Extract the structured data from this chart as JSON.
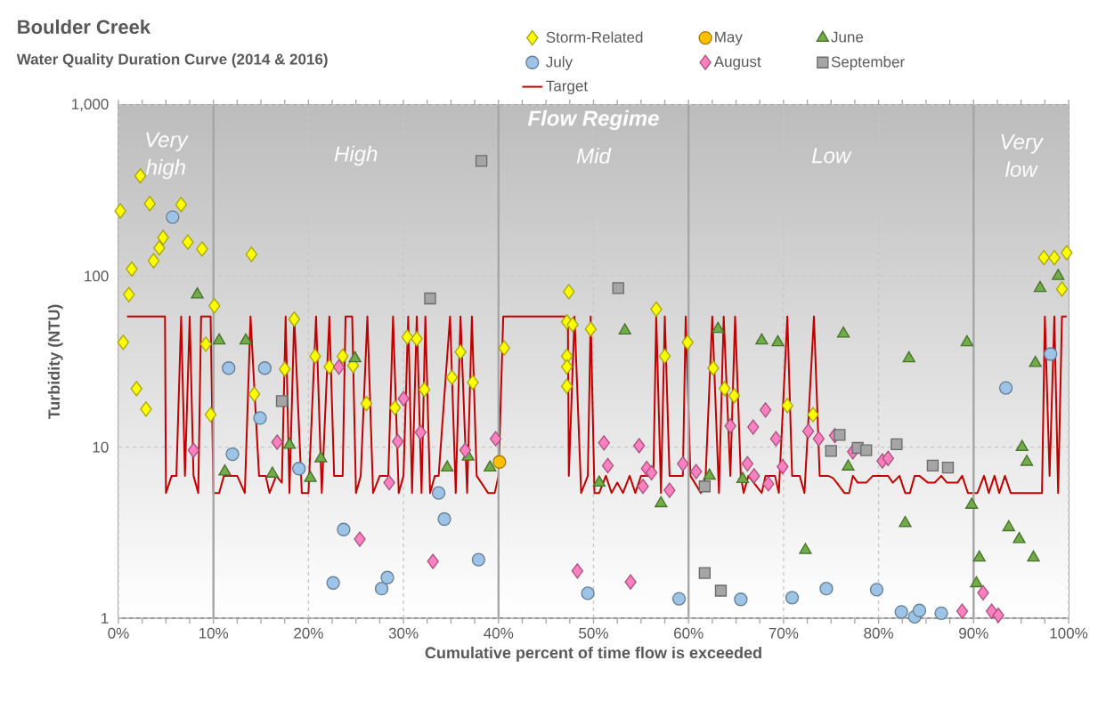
{
  "chart_data": {
    "type": "scatter",
    "title": "Boulder Creek",
    "subtitle": "Water Quality Duration Curve (2014 & 2016)",
    "xlabel": "Cumulative percent of time flow is exceeded",
    "ylabel": "Turbidity (NTU)",
    "annotations": [
      "Flow Regime"
    ],
    "xlim": [
      0,
      100
    ],
    "ylim": [
      1,
      1000
    ],
    "log": "y",
    "grid": true,
    "legend": "top",
    "xticks": [
      {
        "value": 0,
        "label": "0%"
      },
      {
        "value": 10,
        "label": "10%"
      },
      {
        "value": 20,
        "label": "20%"
      },
      {
        "value": 30,
        "label": "30%"
      },
      {
        "value": 40,
        "label": "40%"
      },
      {
        "value": 50,
        "label": "50%"
      },
      {
        "value": 60,
        "label": "60%"
      },
      {
        "value": 70,
        "label": "70%"
      },
      {
        "value": 80,
        "label": "80%"
      },
      {
        "value": 90,
        "label": "90%"
      },
      {
        "value": 100,
        "label": "100%"
      }
    ],
    "yticks": [
      1,
      10,
      100,
      {
        "value": 1000,
        "label": "1,000"
      }
    ],
    "bands": [
      {
        "axis": "x",
        "from": 0,
        "to": 10,
        "label": "Very high"
      },
      {
        "axis": "x",
        "from": 10,
        "to": 40,
        "label": "High"
      },
      {
        "axis": "x",
        "from": 40,
        "to": 60,
        "label": "Mid"
      },
      {
        "axis": "x",
        "from": 60,
        "to": 90,
        "label": "Low"
      },
      {
        "axis": "x",
        "from": 90,
        "to": 100,
        "label": "Very low"
      }
    ],
    "series": [
      {
        "name": "Storm-Related",
        "color": "#ffff00",
        "marker": "diamond",
        "x": [
          0.2,
          0.5,
          1.1,
          1.4,
          1.9,
          2.3,
          2.9,
          3.3,
          3.7,
          4.3,
          4.7,
          6.6,
          7.3,
          8.8,
          9.2,
          9.7,
          10.1,
          14.0,
          14.3,
          17.5,
          18.5,
          20.7,
          22.2,
          23.6,
          24.7,
          26.1,
          29.1,
          30.4,
          31.4,
          32.2,
          35.1,
          36.0,
          37.3,
          40.6,
          47.4,
          47.2,
          47.8,
          47.2,
          47.2,
          47.2,
          49.7,
          56.6,
          57.5,
          59.9,
          62.6,
          63.8,
          64.8,
          70.4,
          73.1,
          97.4,
          98.5,
          99.8,
          99.3
        ],
        "values": [
          240,
          41,
          78,
          110,
          22,
          385,
          16.7,
          265,
          123,
          146,
          168,
          262,
          158,
          144,
          40,
          15.5,
          67,
          134,
          20.4,
          28.6,
          56,
          34,
          29.5,
          34,
          30,
          18,
          17,
          44,
          43,
          21.7,
          25.6,
          36,
          23.9,
          38,
          81,
          54,
          52,
          34,
          29.5,
          22.7,
          49,
          64,
          34,
          41,
          29,
          22,
          20,
          17.5,
          15.5,
          128,
          128,
          137,
          84
        ]
      },
      {
        "name": "May",
        "color": "#ffc000",
        "marker": "circle",
        "x": [
          40.1
        ],
        "values": [
          8.2
        ]
      },
      {
        "name": "June",
        "color": "#70ad47",
        "marker": "triangle",
        "x": [
          8.3,
          10.6,
          13.4,
          11.2,
          16.2,
          18.0,
          20.2,
          21.3,
          24.9,
          34.6,
          36.8,
          39.1,
          50.6,
          53.3,
          57.1,
          62.2,
          63.1,
          65.7,
          67.7,
          69.4,
          72.3,
          76.3,
          76.8,
          82.8,
          83.2,
          89.3,
          89.8,
          90.3,
          90.6,
          93.7,
          94.8,
          95.1,
          95.6,
          96.3,
          96.5,
          97.0,
          98.9
        ],
        "values": [
          78,
          42,
          42,
          7.2,
          7.0,
          10.3,
          6.6,
          8.6,
          33,
          7.6,
          8.8,
          7.6,
          6.2,
          48,
          4.7,
          6.8,
          49,
          6.5,
          42,
          41,
          2.5,
          46,
          7.7,
          3.6,
          33,
          41,
          4.6,
          1.6,
          2.26,
          3.4,
          2.9,
          10,
          8.2,
          2.26,
          31,
          85,
          100
        ]
      },
      {
        "name": "July",
        "color": "#9dc3e6",
        "marker": "circle",
        "x": [
          5.7,
          11.6,
          12.0,
          15.4,
          14.9,
          19.0,
          22.6,
          23.7,
          27.7,
          28.3,
          33.7,
          34.3,
          37.9,
          49.4,
          59.0,
          65.5,
          70.9,
          74.5,
          79.8,
          82.4,
          83.8,
          84.3,
          86.6,
          93.4,
          98.1
        ],
        "values": [
          221,
          29,
          9.1,
          29,
          14.8,
          7.5,
          1.61,
          3.3,
          1.49,
          1.73,
          5.4,
          3.8,
          2.2,
          1.4,
          1.3,
          1.29,
          1.32,
          1.49,
          1.47,
          1.09,
          1.02,
          1.11,
          1.07,
          22.2,
          35
        ]
      },
      {
        "name": "August",
        "color": "#ff80c0",
        "marker": "diamond",
        "x": [
          7.9,
          16.7,
          23.2,
          25.4,
          28.5,
          29.4,
          30.0,
          31.8,
          33.1,
          36.5,
          39.7,
          48.3,
          51.1,
          51.5,
          53.9,
          54.8,
          55.6,
          56.1,
          55.2,
          58.0,
          59.4,
          60.8,
          64.4,
          66.2,
          66.8,
          66.9,
          68.1,
          68.4,
          69.2,
          69.9,
          72.6,
          73.7,
          75.4,
          77.3,
          80.4,
          81.0,
          88.8,
          91.0,
          91.9,
          92.6
        ],
        "values": [
          9.6,
          10.7,
          29.4,
          2.9,
          6.2,
          10.8,
          19.2,
          12.2,
          2.15,
          9.6,
          11.2,
          1.89,
          10.6,
          7.8,
          1.63,
          10.2,
          7.5,
          7.1,
          5.9,
          5.6,
          8.0,
          7.2,
          13.3,
          8.0,
          13.1,
          6.8,
          16.5,
          6.1,
          11.2,
          7.7,
          12.4,
          11.2,
          11.7,
          9.4,
          8.3,
          8.6,
          1.1,
          1.41,
          1.1,
          1.04
        ]
      },
      {
        "name": "September",
        "color": "#a5a5a5",
        "marker": "square",
        "x": [
          17.2,
          32.8,
          38.2,
          52.6,
          61.7,
          61.7,
          63.4,
          75.0,
          75.9,
          77.8,
          78.7,
          81.9,
          85.7,
          87.3
        ],
        "values": [
          18.6,
          74,
          471,
          85,
          5.9,
          1.84,
          1.45,
          9.5,
          11.8,
          9.9,
          9.6,
          10.4,
          7.8,
          7.6
        ]
      },
      {
        "name": "Target",
        "type": "line",
        "color": "#c00000",
        "marker": "none",
        "x": [
          0.9,
          4.9,
          5.0,
          5.6,
          6.1,
          6.6,
          7.0,
          7.5,
          7.9,
          8.4,
          8.7,
          9.7,
          10.0,
          10.6,
          11.1,
          12.5,
          13.3,
          13.9,
          14.8,
          15.5,
          15.9,
          16.6,
          17.2,
          17.6,
          18.0,
          18.5,
          19.3,
          20.0,
          20.8,
          21.4,
          22.2,
          22.7,
          23.6,
          23.9,
          24.6,
          25.0,
          25.5,
          26.2,
          26.8,
          27.5,
          28.4,
          28.9,
          29.5,
          30.0,
          30.5,
          30.9,
          31.4,
          31.9,
          32.3,
          32.8,
          33.3,
          33.7,
          34.9,
          35.5,
          36.0,
          36.7,
          37.2,
          37.7,
          38.9,
          39.6,
          40.0,
          40.5,
          47.3,
          47.4,
          48.0,
          48.7,
          49.4,
          49.7,
          50.1,
          50.6,
          51.3,
          51.9,
          52.5,
          53.1,
          53.8,
          54.4,
          55.0,
          55.7,
          56.3,
          56.6,
          57.1,
          57.5,
          58.0,
          59.4,
          59.7,
          60.2,
          61.3,
          61.8,
          62.5,
          63.2,
          63.7,
          64.4,
          64.9,
          65.5,
          65.8,
          66.3,
          67.7,
          68.1,
          69.1,
          69.5,
          70.4,
          70.9,
          71.7,
          72.2,
          73.2,
          73.8,
          74.7,
          75.2,
          75.6,
          76.4,
          76.9,
          77.3,
          77.8,
          78.7,
          79.4,
          81.0,
          81.5,
          82.2,
          82.8,
          83.3,
          83.8,
          84.3,
          85.2,
          85.9,
          86.6,
          87.2,
          88.3,
          88.8,
          89.4,
          90.4,
          91.1,
          91.6,
          92.2,
          92.7,
          93.3,
          93.9,
          97.2,
          97.5,
          98.0,
          98.5,
          98.9,
          99.3,
          99.8
        ],
        "values": [
          58,
          58,
          5.4,
          6.8,
          6.8,
          58,
          6.8,
          58,
          6.8,
          5.4,
          58,
          58,
          5.4,
          5.4,
          6.8,
          6.8,
          5.4,
          58,
          6.8,
          6.8,
          5.4,
          6.8,
          6.2,
          58,
          5.4,
          58,
          5.4,
          5.4,
          58,
          5.4,
          58,
          6.8,
          6.8,
          58,
          58,
          5.4,
          6.8,
          58,
          5.4,
          6.8,
          6.8,
          58,
          5.4,
          6.8,
          58,
          5.4,
          58,
          5.4,
          58,
          5.4,
          6.8,
          6.8,
          58,
          5.4,
          58,
          5.4,
          58,
          6.8,
          5.4,
          5.4,
          6.8,
          58,
          58,
          6.8,
          58,
          5.4,
          6.8,
          58,
          5.4,
          5.4,
          6.8,
          5.4,
          6.2,
          5.4,
          6.8,
          5.4,
          6.8,
          6.8,
          6.8,
          58,
          5.4,
          58,
          6.8,
          6.8,
          58,
          6.8,
          5.4,
          6.8,
          58,
          5.4,
          58,
          6.8,
          58,
          6.8,
          5.4,
          6.8,
          5.4,
          6.8,
          6.8,
          5.4,
          58,
          6.8,
          6.8,
          5.4,
          58,
          6.8,
          6.8,
          6.6,
          6.2,
          5.4,
          5.4,
          6.8,
          6.2,
          6.2,
          6.8,
          6.8,
          6.2,
          6.8,
          5.4,
          5.4,
          6.8,
          6.8,
          6.2,
          6.2,
          6.8,
          6.2,
          6.2,
          6.8,
          5.4,
          5.4,
          6.8,
          5.4,
          6.8,
          5.4,
          6.8,
          5.4,
          5.4,
          58,
          6.8,
          58,
          5.4,
          58,
          58
        ]
      }
    ]
  }
}
